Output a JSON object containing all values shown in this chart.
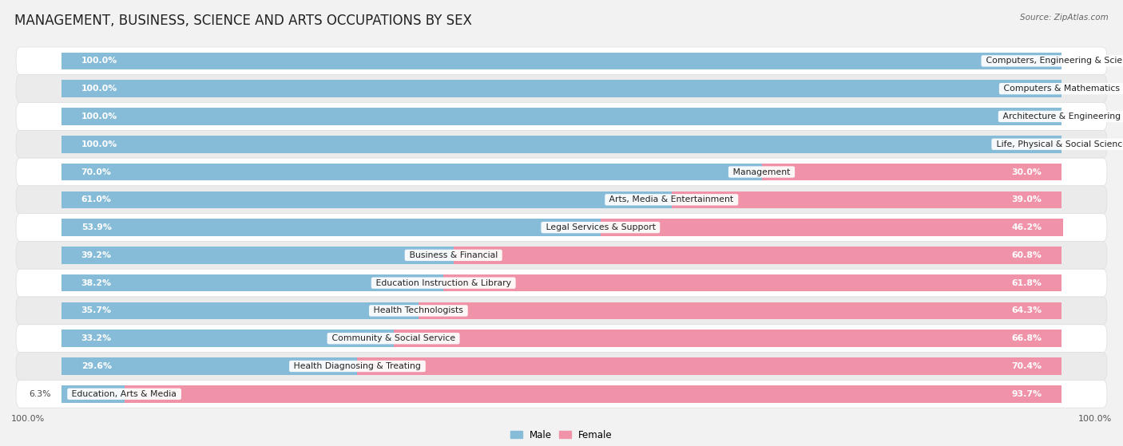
{
  "title": "MANAGEMENT, BUSINESS, SCIENCE AND ARTS OCCUPATIONS BY SEX",
  "source": "Source: ZipAtlas.com",
  "categories": [
    "Computers, Engineering & Science",
    "Computers & Mathematics",
    "Architecture & Engineering",
    "Life, Physical & Social Science",
    "Management",
    "Arts, Media & Entertainment",
    "Legal Services & Support",
    "Business & Financial",
    "Education Instruction & Library",
    "Health Technologists",
    "Community & Social Service",
    "Health Diagnosing & Treating",
    "Education, Arts & Media"
  ],
  "male_pct": [
    100.0,
    100.0,
    100.0,
    100.0,
    70.0,
    61.0,
    53.9,
    39.2,
    38.2,
    35.7,
    33.2,
    29.6,
    6.3
  ],
  "female_pct": [
    0.0,
    0.0,
    0.0,
    0.0,
    30.0,
    39.0,
    46.2,
    60.8,
    61.8,
    64.3,
    66.8,
    70.4,
    93.7
  ],
  "male_color": "#87bcd9",
  "female_color": "#f093a8",
  "bg_color": "#f2f2f2",
  "row_color_even": "#ffffff",
  "row_color_odd": "#ebebeb",
  "bar_height": 0.62,
  "title_fontsize": 12,
  "label_fontsize": 7.8,
  "pct_fontsize": 7.8,
  "tick_fontsize": 8
}
